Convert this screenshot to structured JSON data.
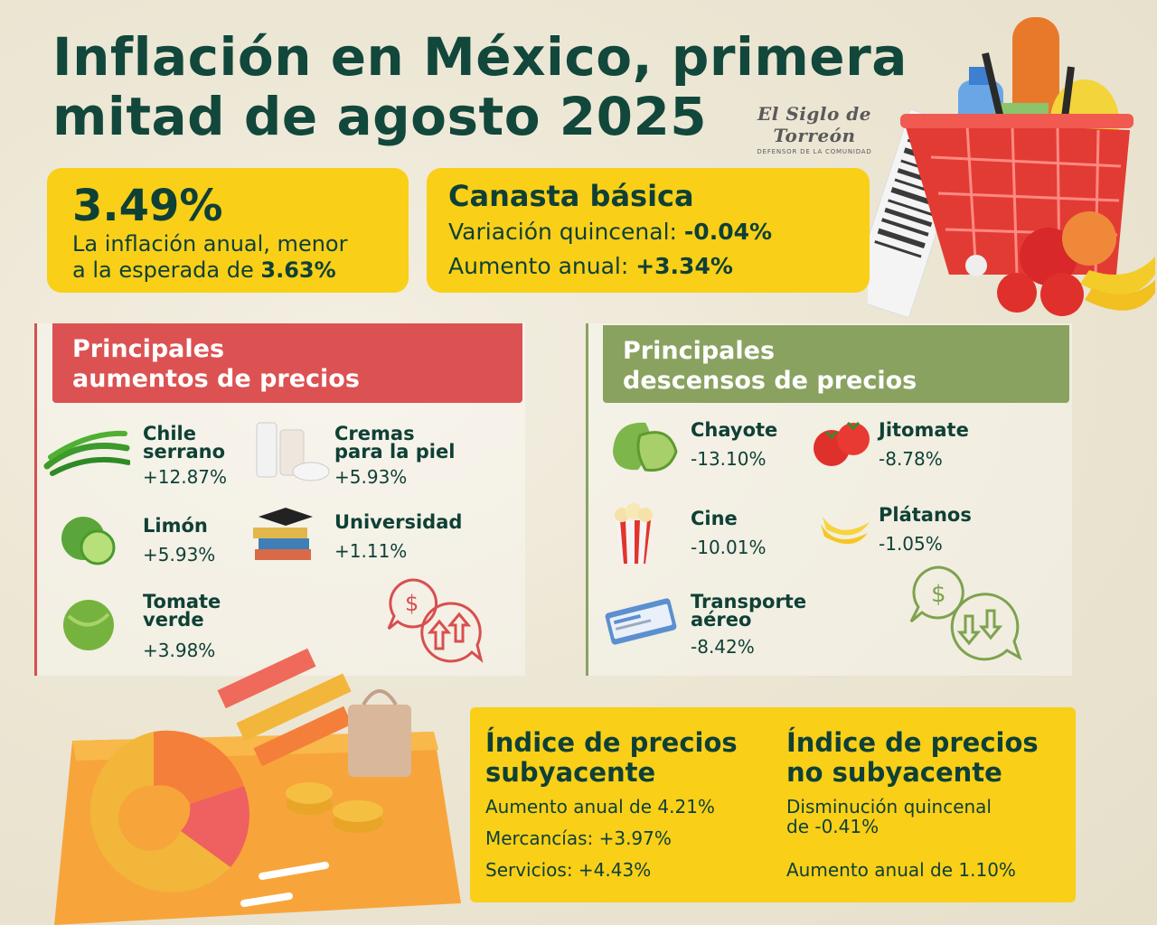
{
  "title_line1": "Inflación en México, primera",
  "title_line2": "mitad de agosto 2025",
  "logo": {
    "name": "El Siglo de Torreón",
    "tagline": "DEFENSOR DE LA COMUNIDAD"
  },
  "inflation": {
    "value": "3.49%",
    "text_line1": "La inflación anual, menor",
    "text_line2_prefix": "a la esperada de ",
    "expected": "3.63%"
  },
  "canasta": {
    "title": "Canasta básica",
    "quincenal_label": "Variación quincenal: ",
    "quincenal_value": "-0.04%",
    "anual_label": "Aumento anual: ",
    "anual_value": "+3.34%"
  },
  "aumentos": {
    "title_line1": "Principales",
    "title_line2": "aumentos de precios",
    "items": [
      {
        "name1": "Chile",
        "name2": "serrano",
        "value": "+12.87%"
      },
      {
        "name1": "Cremas",
        "name2": "para la piel",
        "value": "+5.93%"
      },
      {
        "name1": "Limón",
        "name2": "",
        "value": "+5.93%"
      },
      {
        "name1": "Universidad",
        "name2": "",
        "value": "+1.11%"
      },
      {
        "name1": "Tomate",
        "name2": "verde",
        "value": "+3.98%"
      }
    ]
  },
  "descensos": {
    "title_line1": "Principales",
    "title_line2": "descensos de precios",
    "items": [
      {
        "name1": "Chayote",
        "name2": "",
        "value": "-13.10%"
      },
      {
        "name1": "Jitomate",
        "name2": "",
        "value": "-8.78%"
      },
      {
        "name1": "Cine",
        "name2": "",
        "value": "-10.01%"
      },
      {
        "name1": "Plátanos",
        "name2": "",
        "value": "-1.05%"
      },
      {
        "name1": "Transporte",
        "name2": "aéreo",
        "value": "-8.42%"
      }
    ]
  },
  "subyacente": {
    "title_line1": "Índice de precios",
    "title_line2": "subyacente",
    "line1": "Aumento anual de 4.21%",
    "line2": "Mercancías: +3.97%",
    "line3": "Servicios: +4.43%"
  },
  "no_subyacente": {
    "title_line1": "Índice de precios",
    "title_line2": "no subyacente",
    "line1a": "Disminución quincenal",
    "line1b": "de -0.41%",
    "line2": "Aumento anual de 1.10%"
  },
  "colors": {
    "dark_green": "#12473b",
    "yellow": "#f9cf18",
    "red": "#dc5252",
    "green": "#8aa260"
  },
  "icons": [
    "chile-icon",
    "cream-icon",
    "lime-icon",
    "graduation-icon",
    "tomatillo-icon",
    "price-up-icon",
    "chayote-icon",
    "tomato-icon",
    "popcorn-icon",
    "banana-icon",
    "plane-ticket-icon",
    "price-down-icon",
    "basket-illustration",
    "chart-illustration"
  ]
}
